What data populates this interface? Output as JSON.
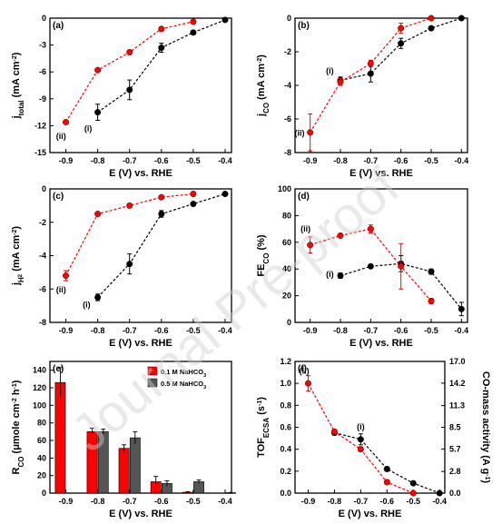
{
  "watermark": "Journal Pre-proof",
  "chart_data": [
    {
      "panel": "(a)",
      "type": "scatter",
      "xlabel": "E (V) vs. RHE",
      "ylabel": "j_total (mA cm^-2)",
      "ylabel_main": "j",
      "ylabel_sub": "total",
      "ylabel_rest": " (mA cm",
      "ylabel_sup": "-2",
      "ylabel_end": ")",
      "xlim": [
        -0.95,
        -0.38
      ],
      "ylim": [
        -15,
        0
      ],
      "xticks": [
        -0.9,
        -0.8,
        -0.7,
        -0.6,
        -0.5,
        -0.4
      ],
      "yticks": [
        -15,
        -12,
        -9,
        -6,
        -3,
        0
      ],
      "series": [
        {
          "marker": "(i)",
          "color": "#000000",
          "x": [
            -0.8,
            -0.7,
            -0.6,
            -0.5,
            -0.4
          ],
          "y": [
            -10.5,
            -8.0,
            -3.3,
            -1.6,
            -0.2
          ],
          "err": [
            0.9,
            1.1,
            0.5,
            0.2,
            0.1
          ]
        },
        {
          "marker": "(ii)",
          "color": "#ff0000",
          "x": [
            -0.9,
            -0.8,
            -0.7,
            -0.6,
            -0.5
          ],
          "y": [
            -11.6,
            -5.8,
            -3.8,
            -1.2,
            -0.4
          ],
          "err": [
            0.2,
            0.1,
            0.1,
            0.1,
            0.1
          ]
        }
      ],
      "labels": [
        {
          "text": "(i)",
          "x": -0.83,
          "y": -12.6
        },
        {
          "text": "(ii)",
          "x": -0.915,
          "y": -13.5
        }
      ]
    },
    {
      "panel": "(b)",
      "type": "scatter",
      "xlabel": "E (V) vs. RHE",
      "ylabel": "j_CO (mA cm^-2)",
      "ylabel_main": "j",
      "ylabel_sub": "CO",
      "ylabel_rest": " (mA cm",
      "ylabel_sup": "-2",
      "ylabel_end": ")",
      "xlim": [
        -0.95,
        -0.38
      ],
      "ylim": [
        -8,
        0
      ],
      "xticks": [
        -0.9,
        -0.8,
        -0.7,
        -0.6,
        -0.5,
        -0.4
      ],
      "yticks": [
        -8,
        -6,
        -4,
        -2,
        0
      ],
      "series": [
        {
          "marker": "(i)",
          "color": "#000000",
          "x": [
            -0.8,
            -0.7,
            -0.6,
            -0.5,
            -0.4
          ],
          "y": [
            -3.7,
            -3.3,
            -1.5,
            -0.6,
            0.0
          ],
          "err": [
            0.2,
            0.5,
            0.3,
            0.1,
            0.05
          ]
        },
        {
          "marker": "(ii)",
          "color": "#ff0000",
          "x": [
            -0.9,
            -0.8,
            -0.7,
            -0.6,
            -0.5
          ],
          "y": [
            -6.8,
            -3.8,
            -2.7,
            -0.6,
            0.0
          ],
          "err": [
            1.1,
            0.2,
            0.2,
            0.3,
            0.05
          ]
        }
      ],
      "labels": [
        {
          "text": "(i)",
          "x": -0.835,
          "y": -3.3
        },
        {
          "text": "(ii)",
          "x": -0.935,
          "y": -7.0
        }
      ]
    },
    {
      "panel": "(c)",
      "type": "scatter",
      "xlabel": "E (V) vs. RHE",
      "ylabel": "j_H2 (mA cm^-2)",
      "ylabel_main": "j",
      "ylabel_sub": "H",
      "ylabel_sub2": "2",
      "ylabel_rest": " (mA cm",
      "ylabel_sup": "-2",
      "ylabel_end": ")",
      "xlim": [
        -0.95,
        -0.38
      ],
      "ylim": [
        -8,
        0
      ],
      "xticks": [
        -0.9,
        -0.8,
        -0.7,
        -0.6,
        -0.5,
        -0.4
      ],
      "yticks": [
        -8,
        -6,
        -4,
        -2,
        0
      ],
      "series": [
        {
          "marker": "(i)",
          "color": "#000000",
          "x": [
            -0.8,
            -0.7,
            -0.6,
            -0.5,
            -0.4
          ],
          "y": [
            -6.5,
            -4.5,
            -1.5,
            -0.9,
            -0.3
          ],
          "err": [
            0.2,
            0.6,
            0.2,
            0.1,
            0.1
          ]
        },
        {
          "marker": "(ii)",
          "color": "#ff0000",
          "x": [
            -0.9,
            -0.8,
            -0.7,
            -0.6,
            -0.5
          ],
          "y": [
            -5.2,
            -1.5,
            -1.0,
            -0.5,
            -0.3
          ],
          "err": [
            0.3,
            0.1,
            0.1,
            0.1,
            0.1
          ]
        }
      ],
      "labels": [
        {
          "text": "(i)",
          "x": -0.835,
          "y": -7.1
        },
        {
          "text": "(ii)",
          "x": -0.915,
          "y": -6.2
        }
      ]
    },
    {
      "panel": "(d)",
      "type": "scatter",
      "xlabel": "E (V) vs. RHE",
      "ylabel": "FE_CO (%)",
      "ylabel_main": "FE",
      "ylabel_sub": "CO",
      "ylabel_rest": " (%)",
      "xlim": [
        -0.95,
        -0.38
      ],
      "ylim": [
        0,
        100
      ],
      "xticks": [
        -0.9,
        -0.8,
        -0.7,
        -0.6,
        -0.5,
        -0.4
      ],
      "yticks": [
        0,
        20,
        40,
        60,
        80,
        100
      ],
      "series": [
        {
          "marker": "(i)",
          "color": "#000000",
          "x": [
            -0.8,
            -0.7,
            -0.6,
            -0.5,
            -0.4
          ],
          "y": [
            35,
            42,
            44,
            38,
            10
          ],
          "err": [
            2,
            1,
            6,
            2,
            5
          ]
        },
        {
          "marker": "(ii)",
          "color": "#ff0000",
          "x": [
            -0.9,
            -0.8,
            -0.7,
            -0.6,
            -0.5
          ],
          "y": [
            58,
            65,
            70,
            42,
            16
          ],
          "err": [
            6,
            1,
            3,
            17,
            2
          ]
        }
      ],
      "labels": [
        {
          "text": "(i)",
          "x": -0.835,
          "y": 34
        },
        {
          "text": "(ii)",
          "x": -0.915,
          "y": 68
        }
      ]
    },
    {
      "panel": "(e)",
      "type": "bar",
      "xlabel": "E (V) vs. RHE",
      "ylabel": "R_CO (μmole cm^-2 h^-1)",
      "ylabel_main": "R",
      "ylabel_sub": "CO",
      "ylabel_rest": " (μmole cm",
      "ylabel_sup": "-2",
      "ylabel_mid": " h",
      "ylabel_sup2": "-1",
      "ylabel_end": ")",
      "xlim": [
        -0.95,
        -0.38
      ],
      "ylim": [
        0,
        150
      ],
      "xticks": [
        -0.9,
        -0.8,
        -0.7,
        -0.6,
        -0.5,
        -0.4
      ],
      "yticks": [
        0,
        20,
        40,
        60,
        80,
        100,
        120,
        140
      ],
      "categories": [
        -0.9,
        -0.8,
        -0.7,
        -0.6,
        -0.5,
        -0.4
      ],
      "series": [
        {
          "name": "0.1 M NaHCO3",
          "legend": "0.1 M NaHCO",
          "legend_sub": "3",
          "color": "#ff0000",
          "values": [
            126,
            70,
            51,
            13,
            1,
            null
          ],
          "err": [
            17,
            4,
            4,
            6,
            0.5,
            null
          ]
        },
        {
          "name": "0.5 M NaHCO3",
          "legend": "0.5 M NaHCO",
          "legend_sub": "3",
          "color": "#555555",
          "values": [
            null,
            70,
            63,
            11,
            13,
            0.5
          ],
          "err": [
            null,
            3,
            7,
            3,
            2,
            0.3
          ]
        }
      ]
    },
    {
      "panel": "(f)",
      "type": "scatter",
      "xlabel": "E (V) vs. RHE",
      "ylabel": "TOF_ECSA (s^-1)",
      "ylabel_main": "TOF",
      "ylabel_sub": "ECSA",
      "ylabel_rest": " (s",
      "ylabel_sup": "-1",
      "ylabel_end": ")",
      "ylabel_right": "CO-mass activity (A g^-1)",
      "ylabel_right_main": "CO-mass activity (A g",
      "ylabel_right_sup": "-1",
      "ylabel_right_end": ")",
      "xlim": [
        -0.95,
        -0.38
      ],
      "ylim": [
        0,
        1.2
      ],
      "xticks": [
        -0.9,
        -0.8,
        -0.7,
        -0.6,
        -0.5,
        -0.4
      ],
      "yticks": [
        0.0,
        0.2,
        0.4,
        0.6,
        0.8,
        1.0,
        1.2
      ],
      "ylim_right": [
        0,
        17.0
      ],
      "yticks_right": [
        0.0,
        2.8,
        5.7,
        8.5,
        11.3,
        14.2,
        17.0
      ],
      "series": [
        {
          "marker": "(i)",
          "color": "#000000",
          "x": [
            -0.8,
            -0.7,
            -0.6,
            -0.5,
            -0.4
          ],
          "y": [
            0.55,
            0.49,
            0.22,
            0.09,
            0.0
          ],
          "err": [
            0.02,
            0.05,
            0.02,
            0.01,
            0.005
          ]
        },
        {
          "marker": "(ii)",
          "color": "#ff0000",
          "x": [
            -0.9,
            -0.8,
            -0.7,
            -0.6,
            -0.5
          ],
          "y": [
            1.0,
            0.56,
            0.4,
            0.1,
            0.0
          ],
          "err": [
            0.07,
            0.02,
            0.02,
            0.02,
            0.005
          ]
        }
      ],
      "labels": [
        {
          "text": "(i)",
          "x": -0.7,
          "y": 0.58
        },
        {
          "text": "(ii)",
          "x": -0.915,
          "y": 1.09
        }
      ]
    }
  ]
}
